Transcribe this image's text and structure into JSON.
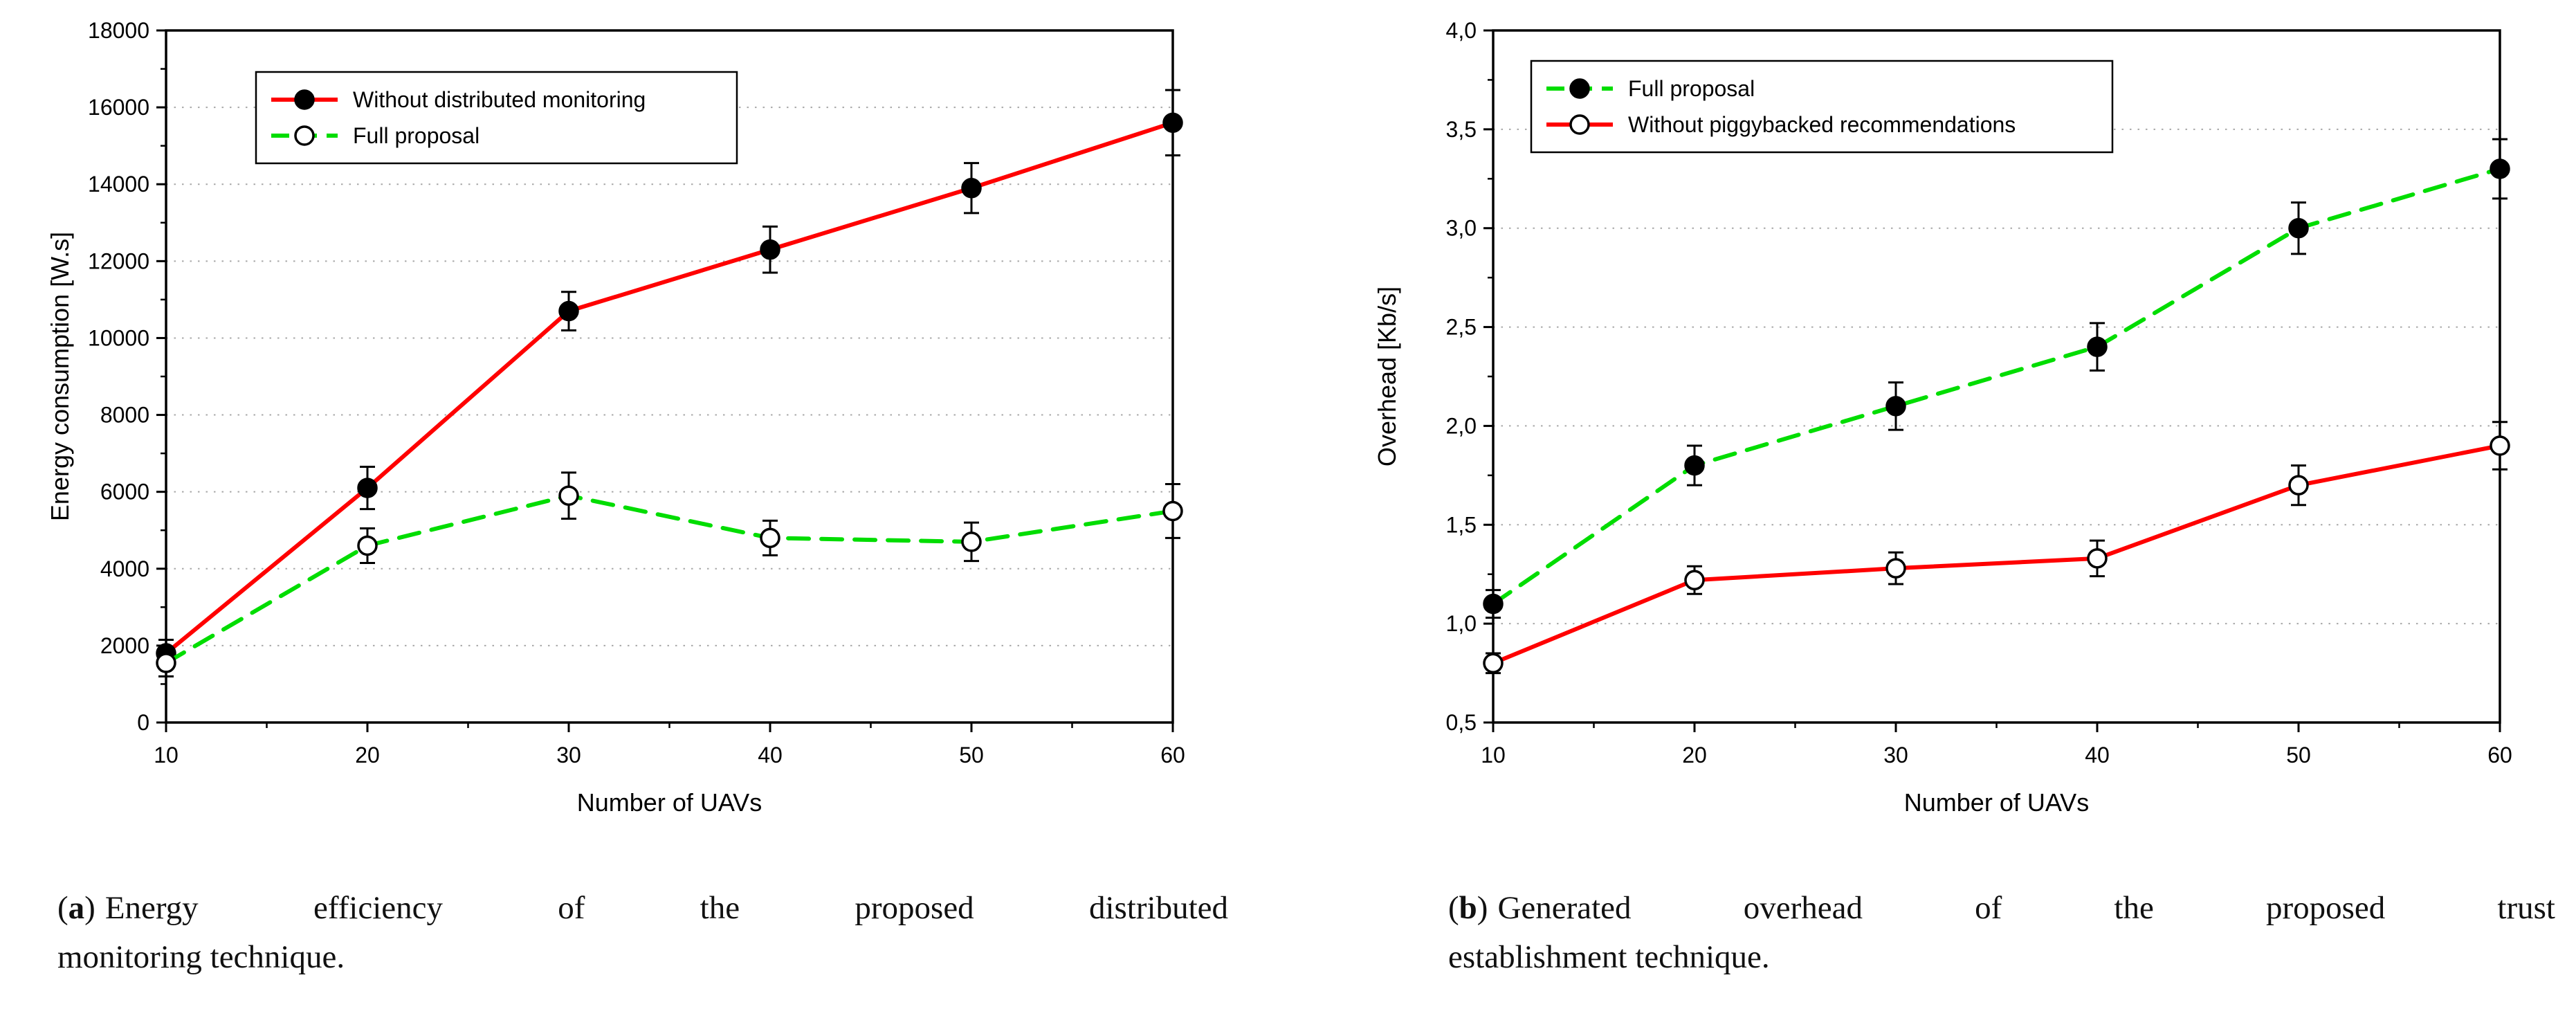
{
  "figure": {
    "captions": [
      {
        "open": "(",
        "letter": "a",
        "close": ")",
        "line1": "Energy efficiency of the proposed distributed",
        "line2": "monitoring technique."
      },
      {
        "open": "(",
        "letter": "b",
        "close": ")",
        "line1": "Generated overhead of the proposed trust",
        "line2": "establishment technique."
      }
    ]
  },
  "chart_data": [
    {
      "type": "line",
      "panel": "a",
      "title": "",
      "xlabel": "Number of UAVs",
      "ylabel": "Energy consumption [W.s]",
      "x": [
        10,
        20,
        30,
        40,
        50,
        60
      ],
      "x_tick_labels": [
        "10",
        "20",
        "30",
        "40",
        "50",
        "60"
      ],
      "xlim": [
        10,
        60
      ],
      "ylim": [
        0,
        18000
      ],
      "y_ticks": [
        0,
        2000,
        4000,
        6000,
        8000,
        10000,
        12000,
        14000,
        16000,
        18000
      ],
      "y_tick_labels": [
        "0",
        "2000",
        "4000",
        "6000",
        "8000",
        "10000",
        "12000",
        "14000",
        "16000",
        "18000"
      ],
      "grid": "horizontal-dotted",
      "legend_position": "top-left",
      "series": [
        {
          "name": "Without distributed monitoring",
          "color": "#ff0000",
          "line_style": "solid",
          "marker": "filled-circle",
          "values": [
            1800,
            6100,
            10700,
            12300,
            13900,
            15600
          ],
          "errors": [
            350,
            550,
            500,
            600,
            650,
            850
          ]
        },
        {
          "name": "Full proposal",
          "color": "#00dd00",
          "line_style": "dashed",
          "marker": "open-circle",
          "values": [
            1550,
            4600,
            5900,
            4800,
            4700,
            5500
          ],
          "errors": [
            350,
            450,
            600,
            450,
            500,
            700
          ]
        }
      ]
    },
    {
      "type": "line",
      "panel": "b",
      "title": "",
      "xlabel": "Number of UAVs",
      "ylabel": "Overhead [Kb/s]",
      "x": [
        10,
        20,
        30,
        40,
        50,
        60
      ],
      "x_tick_labels": [
        "10",
        "20",
        "30",
        "40",
        "50",
        "60"
      ],
      "xlim": [
        10,
        60
      ],
      "ylim": [
        0.5,
        4.0
      ],
      "y_ticks": [
        0.5,
        1.0,
        1.5,
        2.0,
        2.5,
        3.0,
        3.5,
        4.0
      ],
      "y_tick_labels": [
        "0,5",
        "1,0",
        "1,5",
        "2,0",
        "2,5",
        "3,0",
        "3,5",
        "4,0"
      ],
      "grid": "horizontal-dotted",
      "legend_position": "top-left",
      "series": [
        {
          "name": "Full proposal",
          "color": "#00dd00",
          "line_style": "dashed",
          "marker": "filled-circle",
          "values": [
            1.1,
            1.8,
            2.1,
            2.4,
            3.0,
            3.3
          ],
          "errors": [
            0.07,
            0.1,
            0.12,
            0.12,
            0.13,
            0.15
          ]
        },
        {
          "name": "Without piggybacked recommendations",
          "color": "#ff0000",
          "line_style": "solid",
          "marker": "open-circle",
          "values": [
            0.8,
            1.22,
            1.28,
            1.33,
            1.7,
            1.9
          ],
          "errors": [
            0.05,
            0.07,
            0.08,
            0.09,
            0.1,
            0.12
          ]
        }
      ]
    }
  ]
}
